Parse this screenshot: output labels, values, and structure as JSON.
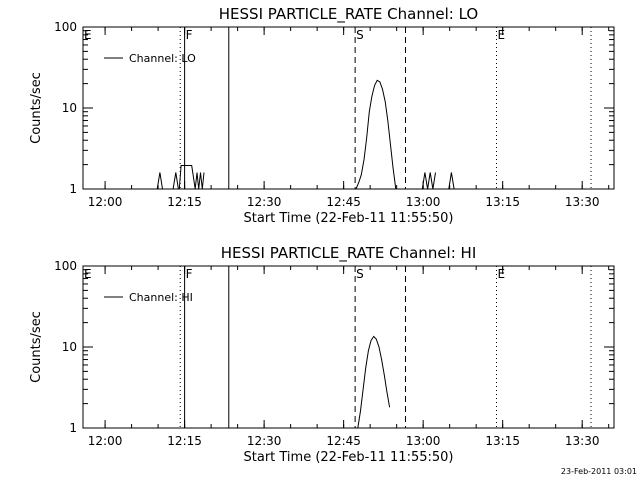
{
  "chart_data": [
    {
      "type": "line",
      "title": "HESSI PARTICLE_RATE Channel: LO",
      "xlabel": "Start Time (22-Feb-11 11:55:50)",
      "ylabel": "Counts/sec",
      "y_scale": "log",
      "xlim": [
        "11:55:50",
        "13:36:00"
      ],
      "ylim": [
        1,
        100
      ],
      "x_ticks": [
        "12:00",
        "12:15",
        "12:30",
        "12:45",
        "13:00",
        "13:15",
        "13:30"
      ],
      "y_ticks": [
        "1",
        "10",
        "100"
      ],
      "grid": false,
      "legend": {
        "position": "top-left",
        "entries": [
          "Channel: LO"
        ]
      },
      "markers": [
        {
          "label": "E",
          "time": "11:55:50",
          "style": "none"
        },
        {
          "label": "",
          "time": "12:14:10",
          "style": "dotted"
        },
        {
          "label": "F",
          "time": "12:15:00",
          "style": "solid"
        },
        {
          "label": "",
          "time": "12:23:20",
          "style": "solid"
        },
        {
          "label": "S",
          "time": "12:47:10",
          "style": "dashed"
        },
        {
          "label": "",
          "time": "12:56:40",
          "style": "dashed"
        },
        {
          "label": "E",
          "time": "13:13:50",
          "style": "dotted"
        },
        {
          "label": "",
          "time": "13:31:40",
          "style": "dotted"
        }
      ],
      "series": [
        {
          "name": "Channel: LO",
          "segments": [
            {
              "x": [
                "12:09:50",
                "12:10:20",
                "12:10:50"
              ],
              "y": [
                1,
                1.6,
                1
              ]
            },
            {
              "x": [
                "12:12:50",
                "12:13:20",
                "12:13:50"
              ],
              "y": [
                1,
                1.6,
                1
              ]
            },
            {
              "x": [
                "12:14:00",
                "12:14:20",
                "12:15:20",
                "12:16:20",
                "12:17:00",
                "12:17:20",
                "12:17:40",
                "12:18:00",
                "12:18:20",
                "12:18:40"
              ],
              "y": [
                1,
                1.95,
                1.95,
                1.95,
                1,
                1.6,
                1,
                1.6,
                1,
                1.6
              ]
            },
            {
              "x": [
                "12:47:20",
                "12:47:50",
                "12:48:20",
                "12:48:50",
                "12:49:20",
                "12:49:50",
                "12:50:20",
                "12:50:50",
                "12:51:20",
                "12:51:50",
                "12:52:20",
                "12:52:50",
                "12:53:20",
                "12:53:50",
                "12:54:20",
                "12:54:50"
              ],
              "y": [
                1,
                1.2,
                1.5,
                2.3,
                4.2,
                9,
                14,
                19,
                22,
                21,
                17,
                12,
                7,
                3.5,
                1.8,
                1
              ]
            },
            {
              "x": [
                "12:59:50",
                "13:00:20",
                "13:00:50",
                "13:01:20",
                "13:01:50",
                "13:02:20"
              ],
              "y": [
                1,
                1.6,
                1,
                1.6,
                1,
                1.6
              ]
            },
            {
              "x": [
                "13:04:50",
                "13:05:20",
                "13:05:50"
              ],
              "y": [
                1,
                1.6,
                1
              ]
            }
          ]
        }
      ]
    },
    {
      "type": "line",
      "title": "HESSI PARTICLE_RATE Channel: HI",
      "xlabel": "Start Time (22-Feb-11 11:55:50)",
      "ylabel": "Counts/sec",
      "y_scale": "log",
      "xlim": [
        "11:55:50",
        "13:36:00"
      ],
      "ylim": [
        1,
        100
      ],
      "x_ticks": [
        "12:00",
        "12:15",
        "12:30",
        "12:45",
        "13:00",
        "13:15",
        "13:30"
      ],
      "y_ticks": [
        "1",
        "10",
        "100"
      ],
      "grid": false,
      "legend": {
        "position": "top-left",
        "entries": [
          "Channel: HI"
        ]
      },
      "markers": [
        {
          "label": "E",
          "time": "11:55:50",
          "style": "none"
        },
        {
          "label": "",
          "time": "12:14:10",
          "style": "dotted"
        },
        {
          "label": "F",
          "time": "12:15:00",
          "style": "solid"
        },
        {
          "label": "",
          "time": "12:23:20",
          "style": "solid"
        },
        {
          "label": "S",
          "time": "12:47:10",
          "style": "dashed"
        },
        {
          "label": "",
          "time": "12:56:40",
          "style": "dashed"
        },
        {
          "label": "E",
          "time": "13:13:50",
          "style": "dotted"
        },
        {
          "label": "",
          "time": "13:31:40",
          "style": "dotted"
        }
      ],
      "series": [
        {
          "name": "Channel: HI",
          "segments": [
            {
              "x": [
                "12:47:40",
                "12:48:10",
                "12:48:40",
                "12:49:10",
                "12:49:40",
                "12:50:10",
                "12:50:40",
                "12:51:10",
                "12:51:40",
                "12:52:10",
                "12:52:40",
                "12:53:10",
                "12:53:40"
              ],
              "y": [
                1,
                1.6,
                3,
                5.5,
                9,
                12,
                13.5,
                12.5,
                10,
                7,
                4.5,
                2.8,
                1.8
              ]
            }
          ]
        }
      ]
    }
  ],
  "footer": {
    "timestamp": "23-Feb-2011 03:01"
  }
}
